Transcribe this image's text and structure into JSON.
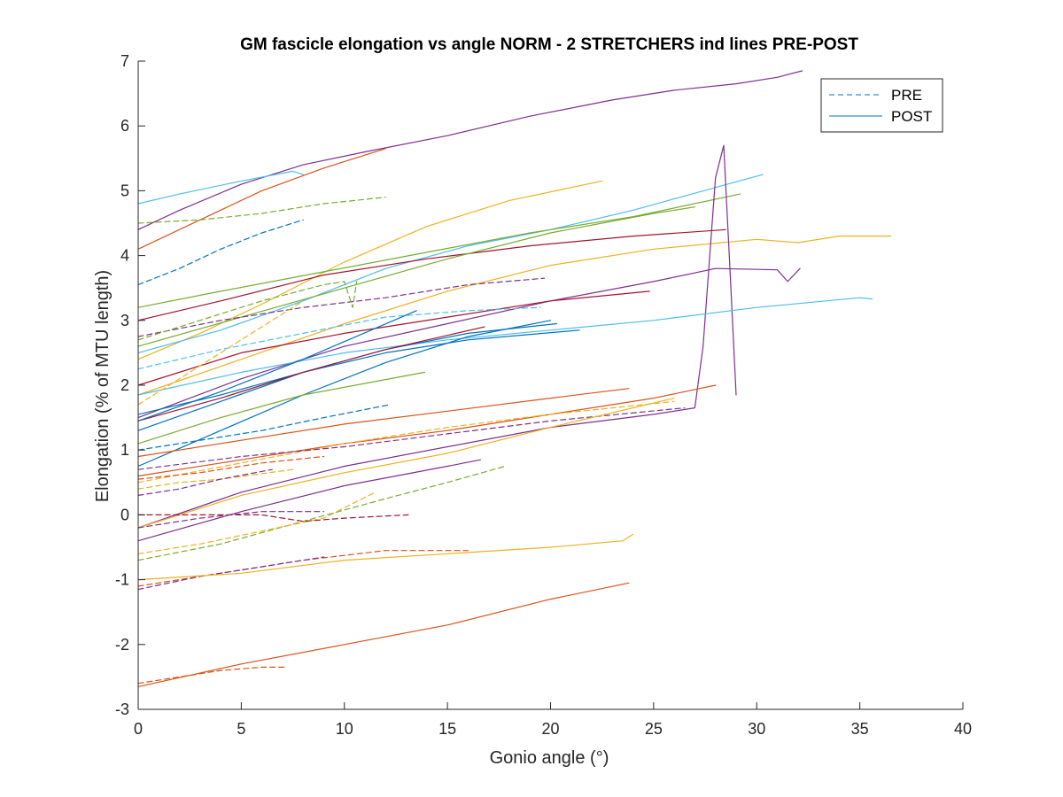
{
  "chart_data": {
    "type": "line",
    "title": "GM fascicle elongation vs angle NORM - 2 STRETCHERS ind lines PRE-POST",
    "xlabel": "Gonio angle (°)",
    "ylabel": "Elongation (% of MTU length)",
    "xlim": [
      0,
      40
    ],
    "ylim": [
      -3,
      7
    ],
    "xticks": [
      0,
      5,
      10,
      15,
      20,
      25,
      30,
      35,
      40
    ],
    "yticks": [
      -3,
      -2,
      -1,
      0,
      1,
      2,
      3,
      4,
      5,
      6,
      7
    ],
    "legend": {
      "position": "top-right",
      "entries": [
        {
          "label": "PRE",
          "style": "dashed",
          "color": "#0072BD"
        },
        {
          "label": "POST",
          "style": "solid",
          "color": "#0072BD"
        }
      ]
    },
    "grid": false,
    "series": [
      {
        "color": "#7E2F8E",
        "style": "solid",
        "x": [
          0,
          2,
          5,
          8,
          11,
          15,
          19,
          23,
          26,
          29,
          31,
          32.2
        ],
        "y": [
          4.4,
          4.7,
          5.1,
          5.4,
          5.6,
          5.85,
          6.15,
          6.4,
          6.55,
          6.65,
          6.75,
          6.85
        ]
      },
      {
        "color": "#4DBEEE",
        "style": "solid",
        "x": [
          0,
          2,
          5,
          7.5,
          8
        ],
        "y": [
          4.8,
          4.95,
          5.15,
          5.3,
          5.25
        ]
      },
      {
        "color": "#D95319",
        "style": "solid",
        "x": [
          0,
          3,
          6,
          9,
          12
        ],
        "y": [
          4.1,
          4.55,
          5.0,
          5.35,
          5.65
        ]
      },
      {
        "color": "#77AC30",
        "style": "dashed",
        "x": [
          0,
          3,
          6,
          9,
          12
        ],
        "y": [
          4.5,
          4.55,
          4.65,
          4.8,
          4.9
        ]
      },
      {
        "color": "#0072BD",
        "style": "dashed",
        "x": [
          0,
          2,
          4,
          6,
          8
        ],
        "y": [
          3.55,
          3.8,
          4.1,
          4.35,
          4.55
        ]
      },
      {
        "color": "#EDB120",
        "style": "solid",
        "x": [
          0,
          3,
          6,
          10,
          14,
          18,
          22.5
        ],
        "y": [
          2.4,
          2.8,
          3.25,
          3.9,
          4.45,
          4.85,
          5.15
        ]
      },
      {
        "color": "#4DBEEE",
        "style": "solid",
        "x": [
          0,
          4,
          8,
          12,
          16,
          20,
          24,
          28,
          30.3
        ],
        "y": [
          2.5,
          2.85,
          3.3,
          3.8,
          4.15,
          4.4,
          4.7,
          5.05,
          5.25
        ]
      },
      {
        "color": "#77AC30",
        "style": "solid",
        "x": [
          0,
          4,
          9,
          14,
          19,
          24,
          29.2
        ],
        "y": [
          3.2,
          3.45,
          3.75,
          4.05,
          4.35,
          4.6,
          4.95
        ]
      },
      {
        "color": "#A2142F",
        "style": "solid",
        "x": [
          0,
          4,
          9,
          14,
          19,
          24,
          28.5
        ],
        "y": [
          3.0,
          3.3,
          3.7,
          3.95,
          4.15,
          4.3,
          4.4
        ]
      },
      {
        "color": "#EDB120",
        "style": "solid",
        "x": [
          0,
          5,
          10,
          15,
          20,
          25,
          30,
          32,
          34,
          36.5
        ],
        "y": [
          1.85,
          2.4,
          2.95,
          3.45,
          3.85,
          4.1,
          4.25,
          4.2,
          4.3,
          4.3
        ]
      },
      {
        "color": "#77AC30",
        "style": "solid",
        "x": [
          0,
          5,
          10,
          15,
          20,
          25,
          27
        ],
        "y": [
          2.6,
          3.05,
          3.5,
          3.95,
          4.35,
          4.65,
          4.75
        ]
      },
      {
        "color": "#7E2F8E",
        "style": "solid",
        "x": [
          0,
          5,
          10,
          15,
          20,
          25,
          27,
          27.4,
          28,
          28.4,
          28.7,
          29
        ],
        "y": [
          -0.2,
          0.35,
          0.75,
          1.05,
          1.35,
          1.55,
          1.65,
          2.6,
          5.2,
          5.7,
          3.8,
          1.85
        ]
      },
      {
        "color": "#7E2F8E",
        "style": "solid",
        "x": [
          0,
          5,
          10,
          15,
          20,
          25,
          28,
          31,
          31.5,
          32.1
        ],
        "y": [
          1.5,
          2.1,
          2.6,
          2.95,
          3.3,
          3.6,
          3.8,
          3.78,
          3.6,
          3.8
        ]
      },
      {
        "color": "#4DBEEE",
        "style": "solid",
        "x": [
          0,
          5,
          10,
          15,
          20,
          25,
          30,
          35,
          35.6
        ],
        "y": [
          1.85,
          2.2,
          2.5,
          2.7,
          2.85,
          3.0,
          3.2,
          3.35,
          3.33
        ]
      },
      {
        "color": "#A2142F",
        "style": "solid",
        "x": [
          0,
          5,
          10,
          15,
          20,
          24.8
        ],
        "y": [
          2.0,
          2.5,
          2.8,
          3.05,
          3.3,
          3.45
        ]
      },
      {
        "color": "#7E2F8E",
        "style": "dashed",
        "x": [
          0,
          4,
          8,
          12,
          16,
          19.7
        ],
        "y": [
          2.75,
          3.0,
          3.2,
          3.35,
          3.55,
          3.65
        ]
      },
      {
        "color": "#4DBEEE",
        "style": "dashed",
        "x": [
          0,
          4,
          8,
          12,
          16,
          19.5
        ],
        "y": [
          2.25,
          2.55,
          2.8,
          3.05,
          3.15,
          3.2
        ]
      },
      {
        "color": "#0072BD",
        "style": "solid",
        "x": [
          0,
          4,
          8,
          12,
          16,
          20.3
        ],
        "y": [
          1.3,
          1.75,
          2.2,
          2.55,
          2.8,
          2.95
        ]
      },
      {
        "color": "#0072BD",
        "style": "solid",
        "x": [
          0,
          4,
          8,
          12,
          16,
          20
        ],
        "y": [
          0.75,
          1.3,
          1.85,
          2.35,
          2.75,
          3.0
        ]
      },
      {
        "color": "#0072BD",
        "style": "solid",
        "x": [
          0,
          4,
          8,
          12,
          16,
          21.4
        ],
        "y": [
          1.55,
          1.85,
          2.2,
          2.5,
          2.7,
          2.85
        ]
      },
      {
        "color": "#A2142F",
        "style": "solid",
        "x": [
          0,
          4,
          8,
          12,
          16.8
        ],
        "y": [
          1.45,
          1.8,
          2.2,
          2.55,
          2.9
        ]
      },
      {
        "color": "#0072BD",
        "style": "solid",
        "x": [
          0,
          4,
          8,
          13.5
        ],
        "y": [
          1.45,
          1.9,
          2.4,
          3.15
        ]
      },
      {
        "color": "#77AC30",
        "style": "solid",
        "x": [
          0,
          4,
          8,
          13.9
        ],
        "y": [
          1.1,
          1.5,
          1.85,
          2.2
        ]
      },
      {
        "color": "#0072BD",
        "style": "dashed",
        "x": [
          0,
          3,
          6,
          9,
          12.2
        ],
        "y": [
          1.0,
          1.15,
          1.3,
          1.5,
          1.7
        ]
      },
      {
        "color": "#77AC30",
        "style": "dashed",
        "x": [
          0,
          3,
          6,
          9,
          10,
          10.4,
          10.6
        ],
        "y": [
          2.7,
          3.0,
          3.3,
          3.55,
          3.6,
          3.2,
          3.6
        ]
      },
      {
        "color": "#EDB120",
        "style": "dashed",
        "x": [
          0,
          2,
          4,
          6,
          8
        ],
        "y": [
          1.7,
          2.1,
          2.5,
          2.9,
          3.3
        ]
      },
      {
        "color": "#D95319",
        "style": "solid",
        "x": [
          0,
          5,
          10,
          15,
          20,
          23.8
        ],
        "y": [
          0.9,
          1.15,
          1.4,
          1.6,
          1.8,
          1.95
        ]
      },
      {
        "color": "#D95319",
        "style": "solid",
        "x": [
          0,
          5,
          10,
          15,
          20,
          25,
          28
        ],
        "y": [
          0.6,
          0.85,
          1.1,
          1.3,
          1.55,
          1.8,
          2.0
        ]
      },
      {
        "color": "#EDB120",
        "style": "dashed",
        "x": [
          0,
          5,
          10,
          15,
          20,
          26
        ],
        "y": [
          0.5,
          0.8,
          1.1,
          1.35,
          1.55,
          1.75
        ]
      },
      {
        "color": "#7E2F8E",
        "style": "dashed",
        "x": [
          0,
          5,
          10,
          15,
          20,
          26.5
        ],
        "y": [
          0.7,
          0.9,
          1.05,
          1.25,
          1.45,
          1.65
        ]
      },
      {
        "color": "#EDB120",
        "style": "solid",
        "x": [
          0,
          5,
          10,
          15,
          20,
          26
        ],
        "y": [
          -0.2,
          0.3,
          0.65,
          0.95,
          1.35,
          1.8
        ]
      },
      {
        "color": "#7E2F8E",
        "style": "solid",
        "x": [
          0,
          5,
          10,
          15,
          16.6
        ],
        "y": [
          -0.4,
          0.05,
          0.45,
          0.75,
          0.85
        ]
      },
      {
        "color": "#EDB120",
        "style": "dashed",
        "x": [
          0,
          2,
          4,
          7.5
        ],
        "y": [
          0.4,
          0.5,
          0.55,
          0.7
        ]
      },
      {
        "color": "#7E2F8E",
        "style": "dashed",
        "x": [
          0,
          2,
          4,
          6.5
        ],
        "y": [
          0.3,
          0.4,
          0.55,
          0.7
        ]
      },
      {
        "color": "#D95319",
        "style": "dashed",
        "x": [
          0,
          3,
          6,
          9
        ],
        "y": [
          0.55,
          0.65,
          0.8,
          0.9
        ]
      },
      {
        "color": "#77AC30",
        "style": "dashed",
        "x": [
          0,
          4,
          8,
          12,
          15,
          17.8
        ],
        "y": [
          -0.7,
          -0.45,
          -0.1,
          0.25,
          0.5,
          0.75
        ]
      },
      {
        "color": "#EDB120",
        "style": "dashed",
        "x": [
          0,
          3,
          6,
          9,
          11.5
        ],
        "y": [
          -0.6,
          -0.45,
          -0.25,
          -0.05,
          0.35
        ]
      },
      {
        "color": "#A2142F",
        "style": "dashed",
        "x": [
          0,
          3,
          6,
          8,
          10,
          13.1
        ],
        "y": [
          0.0,
          0.0,
          0.0,
          -0.1,
          -0.05,
          0.0
        ]
      },
      {
        "color": "#7E2F8E",
        "style": "dashed",
        "x": [
          0,
          3,
          6,
          9
        ],
        "y": [
          -0.2,
          -0.05,
          0.05,
          0.05
        ]
      },
      {
        "color": "#D95319",
        "style": "dashed",
        "x": [
          0,
          4,
          8,
          12,
          16
        ],
        "y": [
          -1.1,
          -0.9,
          -0.7,
          -0.55,
          -0.55
        ]
      },
      {
        "color": "#7E2F8E",
        "style": "dashed",
        "x": [
          0,
          3,
          6,
          9
        ],
        "y": [
          -1.15,
          -0.95,
          -0.8,
          -0.65
        ]
      },
      {
        "color": "#EDB120",
        "style": "solid",
        "x": [
          0,
          5,
          10,
          15,
          20,
          23.5,
          24
        ],
        "y": [
          -1.0,
          -0.9,
          -0.7,
          -0.6,
          -0.5,
          -0.4,
          -0.3
        ]
      },
      {
        "color": "#D95319",
        "style": "solid",
        "x": [
          0,
          5,
          10,
          15,
          20,
          23.8
        ],
        "y": [
          -2.65,
          -2.3,
          -2.0,
          -1.7,
          -1.3,
          -1.05
        ]
      },
      {
        "color": "#D95319",
        "style": "dashed",
        "x": [
          0,
          2,
          4,
          6,
          7.2
        ],
        "y": [
          -2.6,
          -2.5,
          -2.4,
          -2.35,
          -2.35
        ]
      }
    ]
  }
}
